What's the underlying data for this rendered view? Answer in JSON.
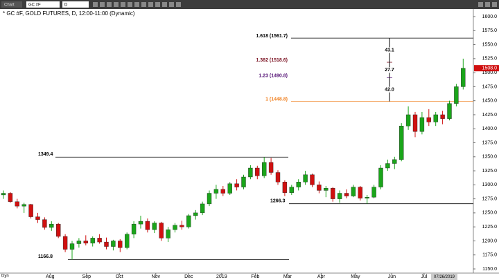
{
  "toolbar": {
    "app": "Chart",
    "symbol": "GC #F",
    "interval": "D"
  },
  "footer": {
    "mode": "Dyn"
  },
  "chart_data": {
    "type": "candlestick",
    "title": "* GC #F, GOLD FUTURES, D, 12:00-11:00 (Dynamic)",
    "open": [
      1282,
      1285,
      1270,
      1262,
      1265,
      1243,
      1238,
      1224,
      1230,
      1208,
      1185,
      1195,
      1200,
      1196,
      1205,
      1198,
      1190,
      1200,
      1188,
      1212,
      1230,
      1235,
      1220,
      1232,
      1205,
      1220,
      1228,
      1225,
      1245,
      1250,
      1266,
      1285,
      1292,
      1285,
      1302,
      1296,
      1314,
      1330,
      1316,
      1340,
      1322,
      1305,
      1286,
      1296,
      1305,
      1318,
      1300,
      1290,
      1294,
      1275,
      1285,
      1280,
      1296,
      1276,
      1278,
      1296,
      1330,
      1338,
      1345,
      1405,
      1425,
      1395,
      1420,
      1412,
      1425,
      1418,
      1445,
      1475
    ],
    "high": [
      1290,
      1287,
      1275,
      1268,
      1266,
      1250,
      1242,
      1235,
      1232,
      1212,
      1200,
      1205,
      1210,
      1208,
      1212,
      1206,
      1202,
      1203,
      1215,
      1235,
      1245,
      1240,
      1235,
      1234,
      1225,
      1232,
      1236,
      1248,
      1255,
      1270,
      1290,
      1300,
      1298,
      1305,
      1310,
      1318,
      1335,
      1334,
      1349.4,
      1348,
      1326,
      1308,
      1300,
      1310,
      1325,
      1320,
      1306,
      1298,
      1296,
      1290,
      1292,
      1300,
      1298,
      1282,
      1300,
      1335,
      1345,
      1350,
      1410,
      1440,
      1430,
      1430,
      1435,
      1430,
      1432,
      1450,
      1480,
      1525
    ],
    "low": [
      1275,
      1268,
      1258,
      1250,
      1240,
      1232,
      1220,
      1218,
      1205,
      1180,
      1166.8,
      1188,
      1192,
      1190,
      1195,
      1185,
      1183,
      1180,
      1185,
      1205,
      1222,
      1215,
      1214,
      1200,
      1198,
      1215,
      1220,
      1222,
      1238,
      1246,
      1262,
      1275,
      1280,
      1282,
      1290,
      1292,
      1310,
      1310,
      1312,
      1318,
      1300,
      1280,
      1282,
      1290,
      1300,
      1296,
      1285,
      1278,
      1270,
      1268,
      1276,
      1278,
      1272,
      1266.3,
      1276,
      1292,
      1325,
      1328,
      1342,
      1398,
      1385,
      1390,
      1405,
      1405,
      1408,
      1415,
      1440,
      1470
    ],
    "close": [
      1285,
      1270,
      1262,
      1265,
      1243,
      1238,
      1224,
      1230,
      1208,
      1185,
      1195,
      1200,
      1196,
      1205,
      1198,
      1190,
      1200,
      1188,
      1212,
      1230,
      1235,
      1220,
      1232,
      1205,
      1220,
      1228,
      1225,
      1245,
      1250,
      1266,
      1285,
      1292,
      1285,
      1302,
      1296,
      1314,
      1330,
      1316,
      1340,
      1322,
      1305,
      1286,
      1296,
      1305,
      1318,
      1300,
      1290,
      1294,
      1275,
      1285,
      1280,
      1296,
      1276,
      1278,
      1296,
      1330,
      1338,
      1345,
      1405,
      1425,
      1395,
      1420,
      1412,
      1425,
      1418,
      1445,
      1475,
      1508
    ],
    "up_color": "#1aa51a",
    "down_color": "#d01010",
    "xticks": [
      {
        "value": 6.8,
        "label": "Aug"
      },
      {
        "value": 12.1,
        "label": "Sep"
      },
      {
        "value": 16.9,
        "label": "Oct"
      },
      {
        "value": 22.2,
        "label": "Nov"
      },
      {
        "value": 27,
        "label": "Dec"
      },
      {
        "value": 31.8,
        "label": "2019"
      },
      {
        "value": 36.7,
        "label": "Feb"
      },
      {
        "value": 41.4,
        "label": "Mar"
      },
      {
        "value": 46.3,
        "label": "Apr"
      },
      {
        "value": 51.3,
        "label": "May"
      },
      {
        "value": 56.6,
        "label": "Jun"
      },
      {
        "value": 61.3,
        "label": "Jul"
      }
    ],
    "cursor_date": "07/26/2019",
    "ylim": [
      1142.6,
      1613.6
    ],
    "yticks": [
      {
        "value": 1150,
        "label": "1150.0"
      },
      {
        "value": 1175,
        "label": "1175.0"
      },
      {
        "value": 1200,
        "label": "1200.0"
      },
      {
        "value": 1225,
        "label": "1225.0"
      },
      {
        "value": 1250,
        "label": "1250.0"
      },
      {
        "value": 1275,
        "label": "1275.0"
      },
      {
        "value": 1300,
        "label": "1300.0"
      },
      {
        "value": 1325,
        "label": "1325.0"
      },
      {
        "value": 1350,
        "label": "1350.0"
      },
      {
        "value": 1375,
        "label": "1375.0"
      },
      {
        "value": 1400,
        "label": "1400.0"
      },
      {
        "value": 1425,
        "label": "1425.0"
      },
      {
        "value": 1450,
        "label": "1450.0"
      },
      {
        "value": 1475,
        "label": "1475.0"
      },
      {
        "value": 1500,
        "label": "1500.0"
      },
      {
        "value": 1525,
        "label": "1525.0"
      },
      {
        "value": 1550,
        "label": "1550.0"
      },
      {
        "value": 1575,
        "label": "1575.0"
      },
      {
        "value": 1600,
        "label": "1600.0"
      }
    ],
    "last_price": {
      "value": 1508,
      "label": "1508.0"
    },
    "levels": [
      1349.4,
      1166.8,
      1266.3
    ],
    "fib_levels": [
      {
        "value": 1561.7,
        "label": "1.618 (1561.7)",
        "color": "#000000"
      },
      {
        "value": 1518.6,
        "label": "1.382 (1518.6)",
        "color": "#7a1020"
      },
      {
        "value": 1490.8,
        "label": "1.23 (1490.8)",
        "color": "#5a1a7a"
      },
      {
        "value": 1448.8,
        "label": "1 (1448.8)",
        "color": "#f08020"
      }
    ],
    "measures": [
      {
        "from": 1518.6,
        "to": 1561.7,
        "label": "43.1"
      },
      {
        "from": 1490.8,
        "to": 1518.6,
        "label": "27.7"
      },
      {
        "from": 1448.8,
        "to": 1490.8,
        "label": "42.0"
      }
    ]
  }
}
